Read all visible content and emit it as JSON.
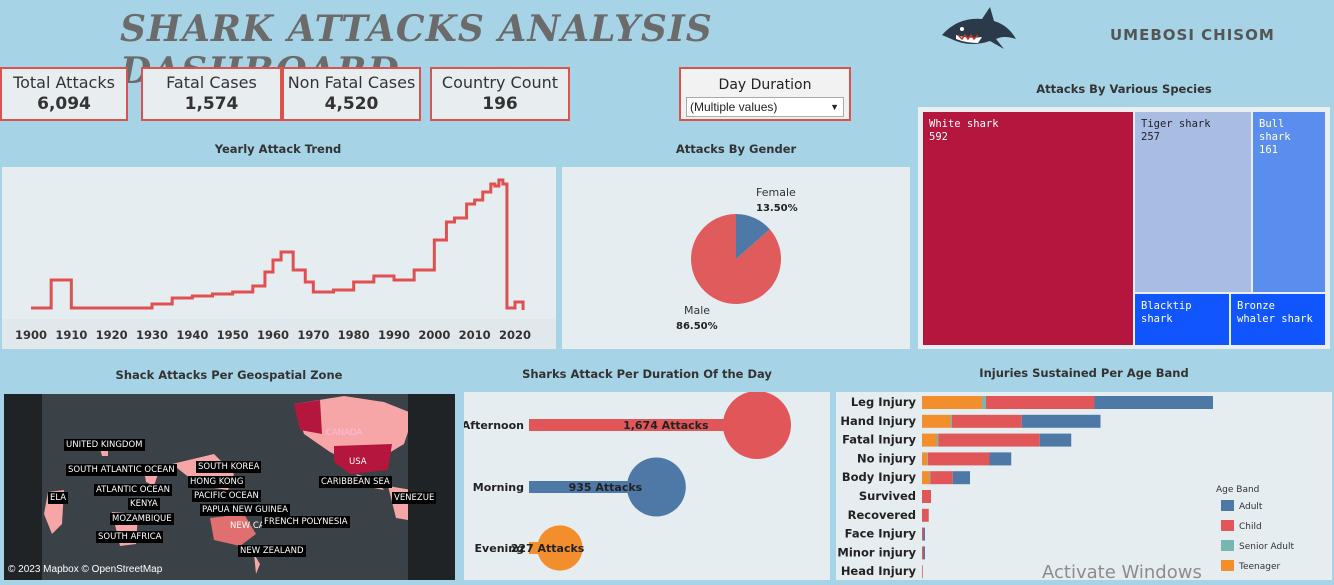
{
  "header": {
    "title": "SHARK ATTACKS ANALYSIS DASHBOARD",
    "author": "UMEBOSI CHISOM",
    "logo": "shark-icon"
  },
  "kpis": [
    {
      "label": "Total Attacks",
      "value": "6,094"
    },
    {
      "label": "Fatal Cases",
      "value": "1,574"
    },
    {
      "label": "Non Fatal Cases",
      "value": "4,520"
    },
    {
      "label": "Country Count",
      "value": "196"
    }
  ],
  "filter": {
    "label": "Day Duration",
    "value": "(Multiple values)"
  },
  "sections": {
    "yearly": "Yearly Attack Trend",
    "gender": "Attacks By Gender",
    "species": "Attacks By Various Species",
    "geo": "Shack Attacks Per Geospatial Zone",
    "duration": "Sharks Attack Per Duration Of the Day",
    "injuries": "Injuries Sustained Per Age Band"
  },
  "colors": {
    "line": "#e05050",
    "male": "#e05c5c",
    "female": "#4e79a7",
    "white_shark": "#b5163d",
    "tiger_shark": "#a9bce3",
    "bull_shark": "#5b8def",
    "blacktip": "#1155ff",
    "bronze": "#1155ff",
    "adult": "#4e79a7",
    "child": "#e15759",
    "senior": "#76b7b2",
    "teen": "#f28e2b"
  },
  "chart_data": [
    {
      "type": "line",
      "title": "Yearly Attack Trend",
      "xticks": [
        "1900",
        "1910",
        "1920",
        "1930",
        "1940",
        "1950",
        "1960",
        "1970",
        "1980",
        "1990",
        "2000",
        "2010",
        "2020"
      ],
      "x": [
        1900,
        1905,
        1910,
        1920,
        1930,
        1935,
        1940,
        1945,
        1950,
        1955,
        1958,
        1960,
        1962,
        1965,
        1968,
        1970,
        1975,
        1980,
        1985,
        1990,
        1995,
        2000,
        2003,
        2005,
        2008,
        2010,
        2012,
        2014,
        2015,
        2016,
        2017,
        2018,
        2020,
        2022
      ],
      "y": [
        2,
        30,
        2,
        2,
        6,
        12,
        14,
        16,
        18,
        24,
        38,
        50,
        58,
        40,
        28,
        18,
        20,
        28,
        34,
        30,
        40,
        70,
        88,
        92,
        106,
        110,
        118,
        126,
        124,
        130,
        126,
        2,
        8,
        0
      ],
      "ylim": [
        0,
        135
      ]
    },
    {
      "type": "pie",
      "title": "Attacks By Gender",
      "labels": [
        "Female",
        "Male"
      ],
      "values": [
        13.5,
        86.5
      ],
      "value_labels": [
        "13.50%",
        "86.50%"
      ]
    },
    {
      "type": "treemap",
      "title": "Attacks By Various Species",
      "items": [
        {
          "name": "White shark",
          "value": "592"
        },
        {
          "name": "Tiger shark",
          "value": "257"
        },
        {
          "name": "Bull shark",
          "value": "161"
        },
        {
          "name": "Blacktip shark",
          "value": ""
        },
        {
          "name": "Bronze whaler shark",
          "value": ""
        }
      ]
    },
    {
      "type": "bar",
      "title": "Sharks Attack Per Duration Of the Day",
      "categories": [
        "Afternoon",
        "Morning",
        "Evening"
      ],
      "values": [
        1674,
        935,
        227
      ],
      "value_labels": [
        "1,674 Attacks",
        "935 Attacks",
        "227 Attacks"
      ]
    },
    {
      "type": "bar",
      "title": "Injuries Sustained Per Age Band",
      "orientation": "horizontal-stacked",
      "categories": [
        "Leg Injury",
        "Hand Injury",
        "Fatal Injury",
        "No injury",
        "Body Injury",
        "Survived",
        "Recovered",
        "Face Injury",
        "Minor injury",
        "Head Injury"
      ],
      "series": [
        {
          "name": "Teenager",
          "values": [
            80,
            38,
            20,
            7,
            10,
            0,
            0,
            0,
            0,
            0
          ]
        },
        {
          "name": "Senior Adult",
          "values": [
            5,
            2,
            2,
            1,
            1,
            0,
            0,
            0,
            0,
            0
          ]
        },
        {
          "name": "Child",
          "values": [
            145,
            93,
            135,
            82,
            30,
            12,
            9,
            2,
            2,
            1
          ]
        },
        {
          "name": "Adult",
          "values": [
            158,
            105,
            42,
            29,
            23,
            0,
            0,
            2,
            2,
            0
          ]
        }
      ],
      "legend_title": "Age Band",
      "legend": [
        "Adult",
        "Child",
        "Senior Adult",
        "Teenager"
      ],
      "xlim": [
        0,
        400
      ]
    }
  ],
  "map": {
    "attribution": "© 2023 Mapbox © OpenStreetMap",
    "labels": [
      "UNITED KINGDOM",
      "SOUTH ATLANTIC OCEAN",
      "ATLANTIC OCEAN",
      "KENYA",
      "MOZAMBIQUE",
      "SOUTH AFRICA",
      "SOUTH KOREA",
      "HONG KONG",
      "PACIFIC OCEAN",
      "PAPUA NEW GUINEA",
      "NEW CALEDONIA",
      "FRENCH POLYNESIA",
      "NEW ZEALAND",
      "CANADA",
      "USA",
      "CARIBBEAN SEA",
      "VENEZUE",
      "ELA"
    ]
  },
  "watermark": "Activate Windows"
}
